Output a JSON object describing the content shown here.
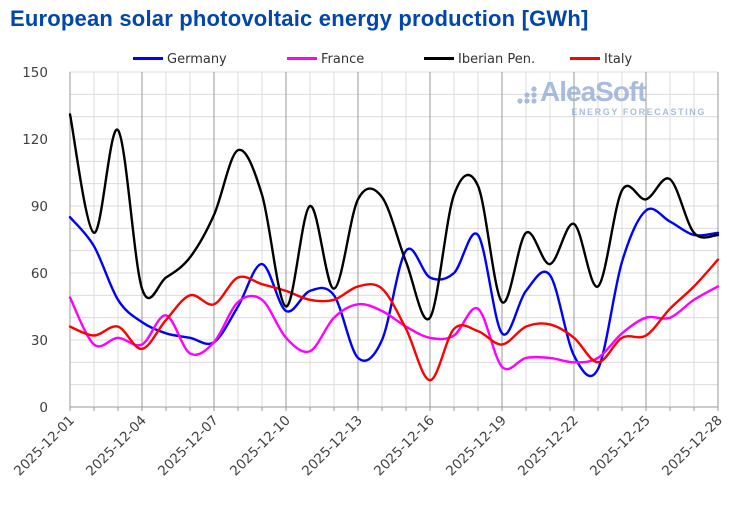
{
  "title": "European solar photovoltaic energy production [GWh]",
  "watermark": {
    "brand": "AleaSoft",
    "tagline": "ENERGY FORECASTING"
  },
  "colors": {
    "title": "#0046AD",
    "grid_light": "#DCDCDC",
    "grid_dark": "#999999",
    "axis_line": "#999999",
    "tick_text": "#3F3F3F",
    "watermark": "#93ACD7"
  },
  "legend": [
    {
      "label": "Germany",
      "color": "#0000FF"
    },
    {
      "label": "France",
      "color": "#FF00FF"
    },
    {
      "label": "Iberian Pen.",
      "color": "#000000"
    },
    {
      "label": "Italy",
      "color": "#FF0000"
    }
  ],
  "chart_data": {
    "type": "line",
    "title": "European solar photovoltaic energy production [GWh]",
    "xlabel": "",
    "ylabel": "",
    "ylim": [
      0,
      150
    ],
    "y_ticks": [
      0,
      30,
      60,
      90,
      120,
      150
    ],
    "y_grid_step": 10,
    "grid": true,
    "legend_position": "top",
    "x": [
      "2025-12-01",
      "2025-12-02",
      "2025-12-03",
      "2025-12-04",
      "2025-12-05",
      "2025-12-06",
      "2025-12-07",
      "2025-12-08",
      "2025-12-09",
      "2025-12-10",
      "2025-12-11",
      "2025-12-12",
      "2025-12-13",
      "2025-12-14",
      "2025-12-15",
      "2025-12-16",
      "2025-12-17",
      "2025-12-18",
      "2025-12-19",
      "2025-12-20",
      "2025-12-21",
      "2025-12-22",
      "2025-12-23",
      "2025-12-24",
      "2025-12-25",
      "2025-12-26",
      "2025-12-27",
      "2025-12-28"
    ],
    "x_tick_labels": [
      "2025-12-01",
      "2025-12-04",
      "2025-12-07",
      "2025-12-10",
      "2025-12-13",
      "2025-12-16",
      "2025-12-19",
      "2025-12-22",
      "2025-12-25",
      "2025-12-28"
    ],
    "series": [
      {
        "name": "Germany",
        "color": "#0000FF",
        "values": [
          85,
          72,
          48,
          38,
          33,
          31,
          29,
          45,
          64,
          43,
          52,
          50,
          22,
          30,
          70,
          58,
          60,
          77,
          33,
          52,
          59,
          23,
          17,
          65,
          88,
          83,
          77,
          78
        ]
      },
      {
        "name": "France",
        "color": "#FF00FF",
        "values": [
          49,
          28,
          31,
          28,
          41,
          24,
          29,
          47,
          48,
          31,
          25,
          40,
          46,
          43,
          36,
          31,
          32,
          44,
          18,
          22,
          22,
          20,
          22,
          33,
          40,
          40,
          48,
          54
        ]
      },
      {
        "name": "Iberian Pen.",
        "color": "#000000",
        "values": [
          131,
          78,
          124,
          53,
          58,
          67,
          86,
          115,
          95,
          45,
          90,
          53,
          93,
          94,
          65,
          40,
          95,
          99,
          47,
          78,
          64,
          82,
          54,
          97,
          93,
          102,
          78,
          77
        ]
      },
      {
        "name": "Italy",
        "color": "#FF0000",
        "values": [
          36,
          32,
          36,
          26,
          39,
          50,
          46,
          58,
          55,
          52,
          48,
          48,
          54,
          53,
          35,
          12,
          35,
          34,
          28,
          36,
          37,
          31,
          20,
          31,
          32,
          44,
          54,
          66
        ]
      }
    ]
  }
}
